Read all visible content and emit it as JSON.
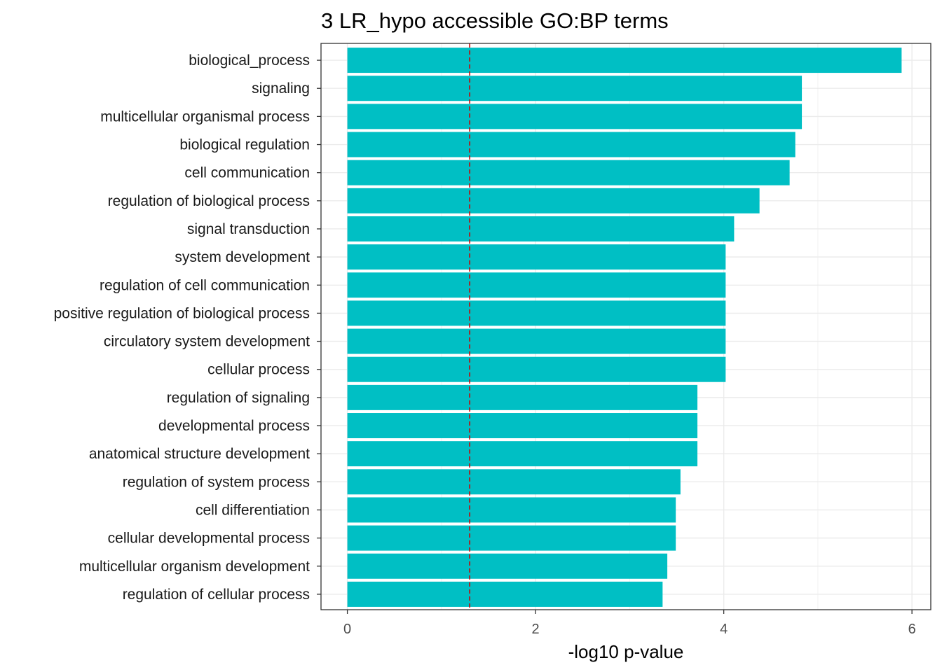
{
  "chart_data": {
    "type": "bar",
    "orientation": "horizontal",
    "title": "3 LR_hypo accessible GO:BP terms",
    "xlabel": "-log10 p-value",
    "ylabel": "",
    "xlim": [
      -0.28,
      6.2
    ],
    "xticks": [
      0,
      2,
      4,
      6
    ],
    "xtick_labels": [
      "0",
      "2",
      "4",
      "6"
    ],
    "grid": true,
    "bar_color": "#00BFC4",
    "reference_line": {
      "value": 1.3,
      "color": "#CC0000",
      "style": "dashed"
    },
    "categories": [
      "biological_process",
      "signaling",
      "multicellular organismal process",
      "biological regulation",
      "cell communication",
      "regulation of biological process",
      "signal transduction",
      "system development",
      "regulation of cell communication",
      "positive regulation of biological process",
      "circulatory system development",
      "cellular process",
      "regulation of signaling",
      "developmental process",
      "anatomical structure development",
      "regulation of system process",
      "cell differentiation",
      "cellular developmental process",
      "multicellular organism development",
      "regulation of cellular process"
    ],
    "values": [
      5.89,
      4.83,
      4.83,
      4.76,
      4.7,
      4.38,
      4.11,
      4.02,
      4.02,
      4.02,
      4.02,
      4.02,
      3.72,
      3.72,
      3.72,
      3.54,
      3.49,
      3.49,
      3.4,
      3.35
    ]
  }
}
